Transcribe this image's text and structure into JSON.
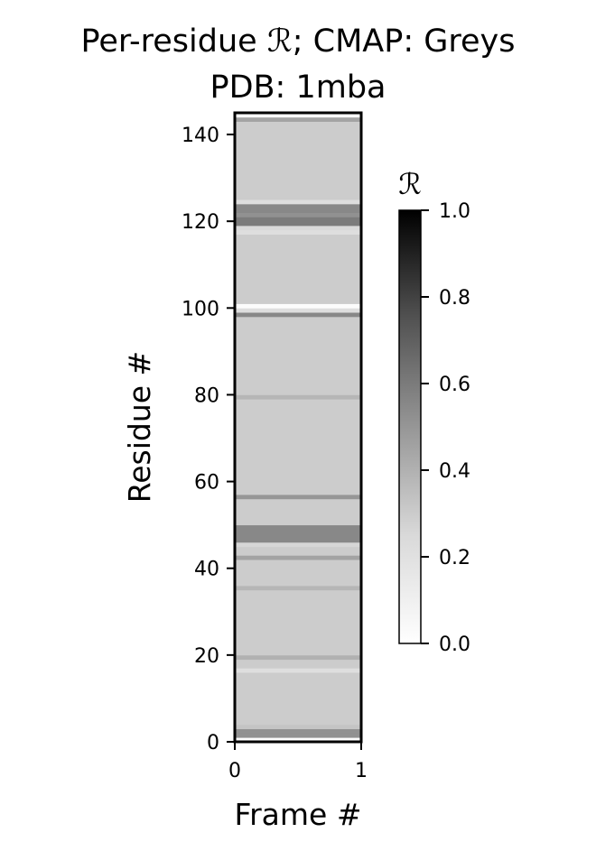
{
  "chart_data": {
    "type": "heatmap",
    "title_line1": "Per-residue ℛ; CMAP: Greys",
    "title_line2": "PDB: 1mba",
    "xlabel": "Frame #",
    "ylabel": "Residue #",
    "colormap": "Greys",
    "xlim": [
      0,
      1
    ],
    "ylim": [
      0,
      145
    ],
    "xticks": [
      "0",
      "1"
    ],
    "yticks": [
      "0",
      "20",
      "40",
      "60",
      "80",
      "100",
      "120",
      "140"
    ],
    "colorbar": {
      "label": "ℛ",
      "range": [
        0,
        1
      ],
      "ticks": [
        "0.0",
        "0.2",
        "0.4",
        "0.6",
        "0.8",
        "1.0"
      ]
    },
    "default_value": 0.3,
    "residue_values": [
      {
        "residue": 0,
        "value": 0.02
      },
      {
        "residue": 1,
        "value": 0.52
      },
      {
        "residue": 2,
        "value": 0.52
      },
      {
        "residue": 3,
        "value": 0.33
      },
      {
        "residue": 16,
        "value": 0.22
      },
      {
        "residue": 19,
        "value": 0.4
      },
      {
        "residue": 35,
        "value": 0.38
      },
      {
        "residue": 42,
        "value": 0.45
      },
      {
        "residue": 45,
        "value": 0.26
      },
      {
        "residue": 46,
        "value": 0.55
      },
      {
        "residue": 47,
        "value": 0.55
      },
      {
        "residue": 48,
        "value": 0.55
      },
      {
        "residue": 49,
        "value": 0.55
      },
      {
        "residue": 56,
        "value": 0.5
      },
      {
        "residue": 79,
        "value": 0.38
      },
      {
        "residue": 98,
        "value": 0.55
      },
      {
        "residue": 99,
        "value": 0.22
      },
      {
        "residue": 100,
        "value": 0.02
      },
      {
        "residue": 117,
        "value": 0.22
      },
      {
        "residue": 118,
        "value": 0.25
      },
      {
        "residue": 119,
        "value": 0.6
      },
      {
        "residue": 120,
        "value": 0.6
      },
      {
        "residue": 121,
        "value": 0.52
      },
      {
        "residue": 122,
        "value": 0.55
      },
      {
        "residue": 123,
        "value": 0.55
      },
      {
        "residue": 124,
        "value": 0.22
      },
      {
        "residue": 143,
        "value": 0.45
      },
      {
        "residue": 144,
        "value": 0.02
      }
    ]
  }
}
